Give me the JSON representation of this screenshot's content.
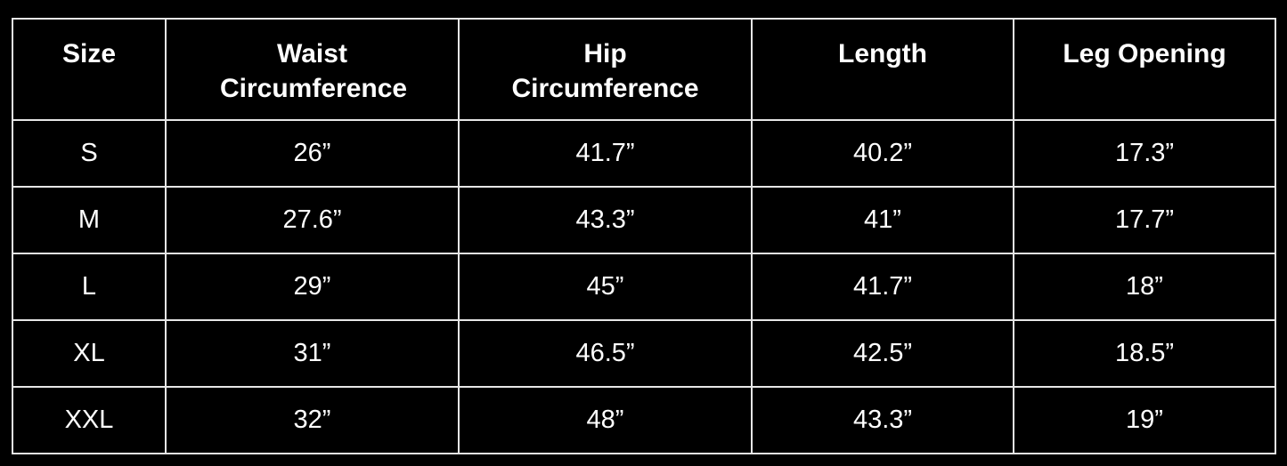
{
  "table": {
    "headers": [
      "Size",
      "Waist Circumference",
      "Hip Circumference",
      "Length",
      "Leg Opening"
    ],
    "rows": [
      [
        "S",
        "26”",
        "41.7”",
        "40.2”",
        "17.3”"
      ],
      [
        "M",
        "27.6”",
        "43.3”",
        "41”",
        "17.7”"
      ],
      [
        "L",
        "29”",
        "45”",
        "41.7”",
        "18”"
      ],
      [
        "XL",
        "31”",
        "46.5”",
        "42.5”",
        "18.5”"
      ],
      [
        "XXL",
        "32”",
        "48”",
        "43.3”",
        "19”"
      ]
    ]
  },
  "colors": {
    "background": "#000000",
    "text": "#ffffff",
    "border": "#e6e6e6"
  }
}
